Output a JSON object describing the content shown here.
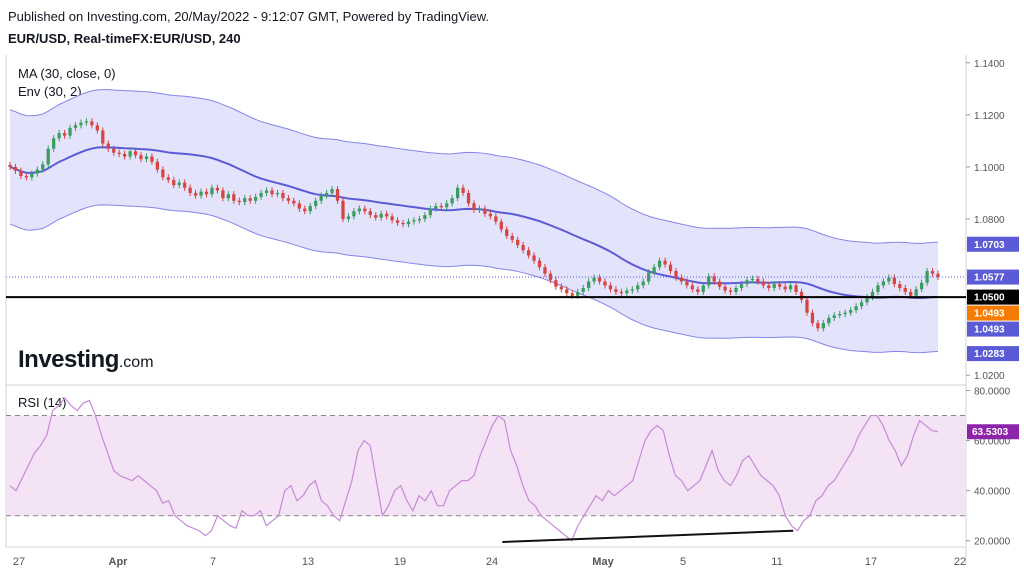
{
  "header": {
    "published": "Published on Investing.com, 20/May/2022 - 9:12:07 GMT, Powered by TradingView.",
    "symbol": "EUR/USD, Real-timeFX:EUR/USD, 240"
  },
  "legend": {
    "ma": "MA (30, close, 0)",
    "env": "Env (30, 2)",
    "rsi": "RSI (14)"
  },
  "brand": {
    "name": "Investing",
    "suffix": ".com"
  },
  "colors": {
    "candle_up": "#3a9d5d",
    "candle_down": "#d64541",
    "ma": "#5b5bd6",
    "envelope_fill": "#e3e3fb",
    "envelope_line": "#8585e8",
    "rsi_line": "#c68ad8",
    "rsi_band": "#f4e3f4",
    "support": "#000000"
  },
  "chart_data": [
    {
      "type": "candlestick",
      "x_ticks": [
        "27",
        "Apr",
        "7",
        "13",
        "19",
        "24",
        "May",
        "5",
        "11",
        "17",
        "22"
      ],
      "y_ticks": [
        "1.1400",
        "1.1200",
        "1.1000",
        "1.0800",
        "1.0200"
      ],
      "ylim": [
        1.017,
        1.143
      ],
      "axis_badges": [
        {
          "label": "1.0703",
          "value": 1.0703,
          "color": "#5b5bd6"
        },
        {
          "label": "1.0577",
          "value": 1.0577,
          "color": "#5b5bd6"
        },
        {
          "label": "1.0500",
          "value": 1.05,
          "color": "#000000"
        },
        {
          "label": "1.0493",
          "value": 1.0493,
          "color": "#f57c00"
        },
        {
          "label": "1.0493",
          "value": 1.0493,
          "color": "#5b5bd6"
        },
        {
          "label": "1.0283",
          "value": 1.0283,
          "color": "#5b5bd6"
        }
      ],
      "support_level": 1.05,
      "last_price": 1.0577,
      "close_series": [
        1.1,
        1.0985,
        1.0965,
        1.096,
        1.0975,
        1.099,
        1.101,
        1.107,
        1.111,
        1.113,
        1.112,
        1.115,
        1.116,
        1.117,
        1.1175,
        1.116,
        1.114,
        1.109,
        1.107,
        1.1055,
        1.105,
        1.104,
        1.106,
        1.1045,
        1.103,
        1.104,
        1.102,
        1.099,
        1.096,
        1.095,
        1.093,
        1.094,
        1.092,
        1.09,
        1.089,
        1.0905,
        1.0895,
        1.092,
        1.091,
        1.088,
        1.0895,
        1.087,
        1.0865,
        1.088,
        1.087,
        1.0885,
        1.09,
        1.091,
        1.0895,
        1.09,
        1.088,
        1.087,
        1.086,
        1.084,
        1.083,
        1.085,
        1.087,
        1.089,
        1.09,
        1.0915,
        1.087,
        1.08,
        1.081,
        1.083,
        1.084,
        1.083,
        1.0815,
        1.0805,
        1.082,
        1.081,
        1.0795,
        1.0785,
        1.078,
        1.079,
        1.0795,
        1.08,
        1.0815,
        1.084,
        1.085,
        1.0845,
        1.086,
        1.088,
        1.092,
        1.09,
        1.086,
        1.0835,
        1.084,
        1.082,
        1.081,
        1.079,
        1.076,
        1.0735,
        1.072,
        1.07,
        1.068,
        1.066,
        1.064,
        1.0615,
        1.059,
        1.0565,
        1.054,
        1.053,
        1.0515,
        1.0505,
        1.052,
        1.0535,
        1.056,
        1.0575,
        1.056,
        1.0545,
        1.053,
        1.052,
        1.0515,
        1.0525,
        1.053,
        1.0545,
        1.056,
        1.0595,
        1.0615,
        1.064,
        1.0625,
        1.06,
        1.0575,
        1.056,
        1.0545,
        1.053,
        1.052,
        1.0545,
        1.058,
        1.056,
        1.054,
        1.0525,
        1.052,
        1.0535,
        1.055,
        1.0565,
        1.057,
        1.056,
        1.0545,
        1.0535,
        1.055,
        1.054,
        1.053,
        1.0545,
        1.052,
        1.049,
        1.044,
        1.04,
        1.038,
        1.04,
        1.042,
        1.043,
        1.0435,
        1.044,
        1.045,
        1.0465,
        1.048,
        1.05,
        1.052,
        1.0545,
        1.056,
        1.0575,
        1.055,
        1.0535,
        1.052,
        1.0505,
        1.053,
        1.0555,
        1.06,
        1.059,
        1.0577
      ]
    },
    {
      "type": "line",
      "name": "RSI (14)",
      "y_ticks": [
        "80.0000",
        "60.0000",
        "40.0000",
        "20.0000"
      ],
      "ylim": [
        17.5,
        81.0
      ],
      "bands": [
        70,
        30
      ],
      "current_label": "63.5303",
      "current_value": 63.53,
      "divergence_line": {
        "from": [
          0.517,
          19.5
        ],
        "to": [
          0.82,
          24.0
        ]
      },
      "series": [
        42,
        40,
        45,
        50,
        55,
        58,
        62,
        72,
        74,
        77,
        74,
        72,
        75,
        76,
        70,
        62,
        55,
        48,
        46,
        45,
        44,
        46,
        44,
        42,
        40,
        35,
        36,
        30,
        28,
        26,
        25,
        24,
        22,
        24,
        30,
        28,
        26,
        25,
        32,
        30,
        30,
        32,
        26,
        28,
        30,
        40,
        42,
        36,
        38,
        42,
        44,
        36,
        34,
        30,
        28,
        36,
        44,
        56,
        60,
        58,
        44,
        30,
        34,
        40,
        42,
        36,
        32,
        38,
        36,
        40,
        34,
        34,
        40,
        42,
        44,
        44,
        46,
        54,
        60,
        66,
        70,
        68,
        56,
        50,
        42,
        36,
        34,
        30,
        28,
        26,
        24,
        22,
        20,
        26,
        30,
        34,
        38,
        36,
        40,
        38,
        40,
        42,
        44,
        52,
        60,
        64,
        66,
        64,
        54,
        46,
        44,
        40,
        42,
        44,
        50,
        56,
        48,
        44,
        42,
        46,
        52,
        54,
        50,
        46,
        44,
        42,
        38,
        30,
        26,
        24,
        28,
        30,
        36,
        38,
        42,
        44,
        48,
        52,
        56,
        62,
        66,
        70,
        70,
        66,
        60,
        56,
        50,
        54,
        62,
        68,
        66,
        64,
        63.53
      ]
    }
  ]
}
